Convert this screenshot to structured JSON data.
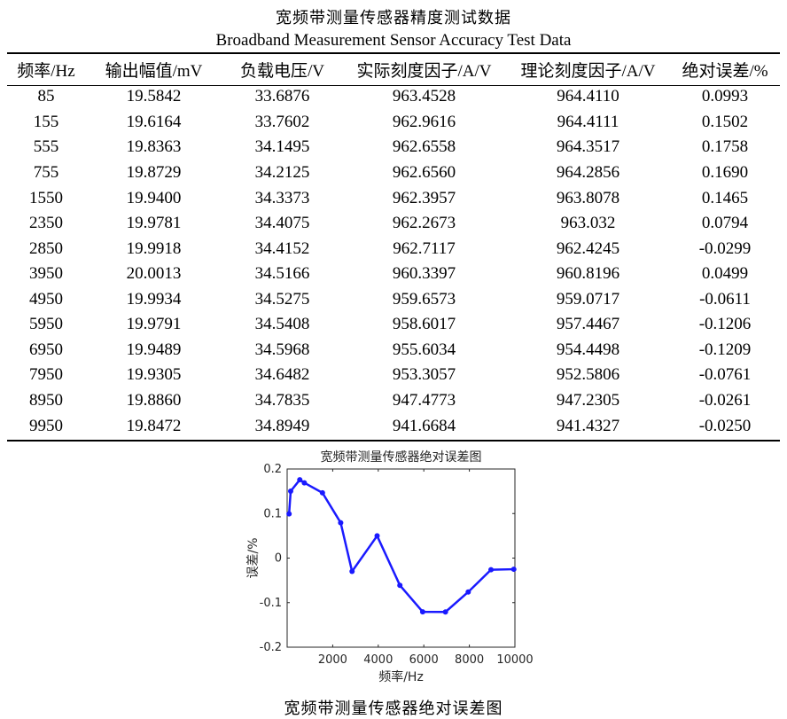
{
  "table": {
    "title_cn": "宽频带测量传感器精度测试数据",
    "title_en": "Broadband Measurement Sensor Accuracy Test Data",
    "headers": [
      "频率/Hz",
      "输出幅值/mV",
      "负载电压/V",
      "实际刻度因子/A/V",
      "理论刻度因子/A/V",
      "绝对误差/%"
    ],
    "rows": [
      [
        "85",
        "19.5842",
        "33.6876",
        "963.4528",
        "964.4110",
        "0.0993"
      ],
      [
        "155",
        "19.6164",
        "33.7602",
        "962.9616",
        "964.4111",
        "0.1502"
      ],
      [
        "555",
        "19.8363",
        "34.1495",
        "962.6558",
        "964.3517",
        "0.1758"
      ],
      [
        "755",
        "19.8729",
        "34.2125",
        "962.6560",
        "964.2856",
        "0.1690"
      ],
      [
        "1550",
        "19.9400",
        "34.3373",
        "962.3957",
        "963.8078",
        "0.1465"
      ],
      [
        "2350",
        "19.9781",
        "34.4075",
        "962.2673",
        "963.032",
        "0.0794"
      ],
      [
        "2850",
        "19.9918",
        "34.4152",
        "962.7117",
        "962.4245",
        "-0.0299"
      ],
      [
        "3950",
        "20.0013",
        "34.5166",
        "960.3397",
        "960.8196",
        "0.0499"
      ],
      [
        "4950",
        "19.9934",
        "34.5275",
        "959.6573",
        "959.0717",
        "-0.0611"
      ],
      [
        "5950",
        "19.9791",
        "34.5408",
        "958.6017",
        "957.4467",
        "-0.1206"
      ],
      [
        "6950",
        "19.9489",
        "34.5968",
        "955.6034",
        "954.4498",
        "-0.1209"
      ],
      [
        "7950",
        "19.9305",
        "34.6482",
        "953.3057",
        "952.5806",
        "-0.0761"
      ],
      [
        "8950",
        "19.8860",
        "34.7835",
        "947.4773",
        "947.2305",
        "-0.0261"
      ],
      [
        "9950",
        "19.8472",
        "34.8949",
        "941.6684",
        "941.4327",
        "-0.0250"
      ]
    ]
  },
  "chart_data": {
    "type": "line",
    "title": "宽频带测量传感器绝对误差图",
    "xlabel": "频率/Hz",
    "ylabel": "误差/%",
    "xlim": [
      0,
      10000
    ],
    "ylim": [
      -0.2,
      0.2
    ],
    "x_ticks": [
      2000,
      4000,
      6000,
      8000,
      10000
    ],
    "y_ticks": [
      -0.2,
      -0.1,
      0,
      0.1,
      0.2
    ],
    "x_tick_labels": [
      "2000",
      "4000",
      "6000",
      "8000",
      "10000"
    ],
    "y_tick_labels": [
      "-0.2",
      "-0.1",
      "0",
      "0.1",
      "0.2"
    ],
    "grid": false,
    "line_color": "#1a1aff",
    "series": [
      {
        "x": [
          85,
          155,
          555,
          755,
          1550,
          2350,
          2850,
          3950,
          4950,
          5950,
          6950,
          7950,
          8950,
          9950
        ],
        "y": [
          0.0993,
          0.1502,
          0.1758,
          0.169,
          0.1465,
          0.0794,
          -0.0299,
          0.0499,
          -0.0611,
          -0.1206,
          -0.1209,
          -0.0761,
          -0.0261,
          -0.025
        ]
      }
    ]
  },
  "caption": "宽频带测量传感器绝对误差图"
}
